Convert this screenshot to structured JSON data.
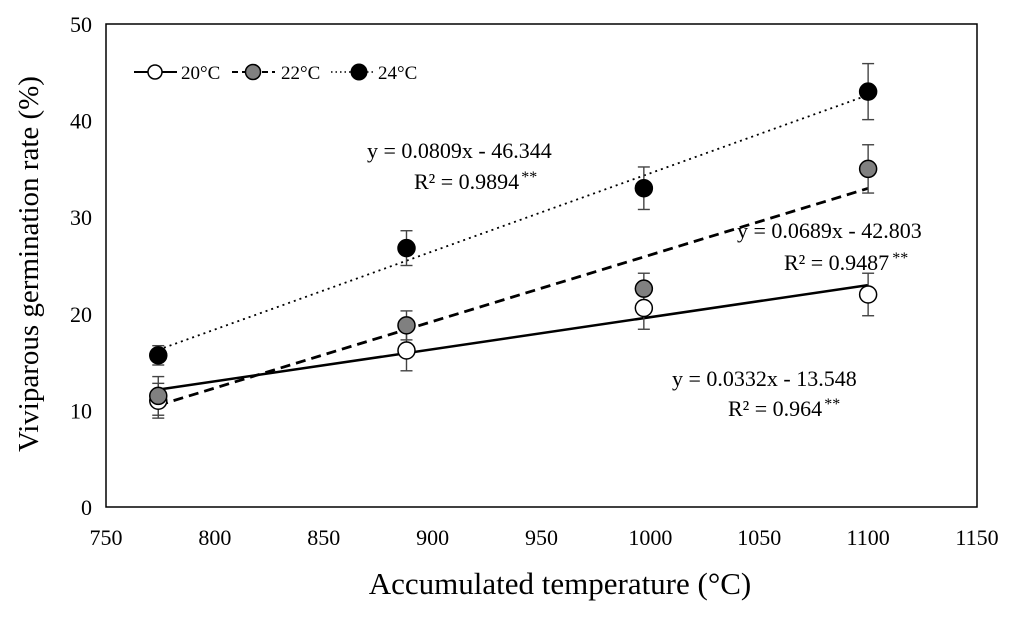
{
  "chart_data": {
    "type": "scatter",
    "xlabel": "Accumulated temperature (°C)",
    "ylabel": "Viviparous germination rate (%)",
    "xlim": [
      750,
      1150
    ],
    "ylim": [
      0,
      50
    ],
    "xticks": [
      750,
      800,
      850,
      900,
      950,
      1000,
      1050,
      1100,
      1150
    ],
    "yticks": [
      0,
      10,
      20,
      30,
      40,
      50
    ],
    "legend_position": "top-left",
    "grid": false,
    "series": [
      {
        "name": "20°C",
        "marker": "open-circle",
        "line_style": "solid",
        "color": "#000000",
        "fill": "#ffffff",
        "x": [
          774,
          888,
          997,
          1100
        ],
        "y": [
          11.0,
          16.2,
          20.6,
          22.0
        ],
        "error": [
          1.8,
          2.1,
          2.2,
          2.2
        ],
        "trendline": {
          "slope": 0.0332,
          "intercept": -13.548
        },
        "equation": "y = 0.0332x - 13.548",
        "r2": "R² = 0.964",
        "sig": "**"
      },
      {
        "name": "22°C",
        "marker": "gray-circle",
        "line_style": "dashed",
        "color": "#000000",
        "fill": "#808080",
        "x": [
          774,
          888,
          997,
          1100
        ],
        "y": [
          11.5,
          18.8,
          22.6,
          35.0
        ],
        "error": [
          2.0,
          1.5,
          1.6,
          2.5
        ],
        "trendline": {
          "slope": 0.0689,
          "intercept": -42.803
        },
        "equation": "y = 0.0689x - 42.803",
        "r2": "R² = 0.9487",
        "sig": "**"
      },
      {
        "name": "24°C",
        "marker": "filled-circle",
        "line_style": "dotted",
        "color": "#000000",
        "fill": "#000000",
        "x": [
          774,
          888,
          997,
          1100
        ],
        "y": [
          15.7,
          26.8,
          33.0,
          43.0
        ],
        "error": [
          1.0,
          1.8,
          2.2,
          2.9
        ],
        "trendline": {
          "slope": 0.0809,
          "intercept": -46.344
        },
        "equation": "y = 0.0809x - 46.344",
        "r2": "R² = 0.9894",
        "sig": "**"
      }
    ]
  }
}
